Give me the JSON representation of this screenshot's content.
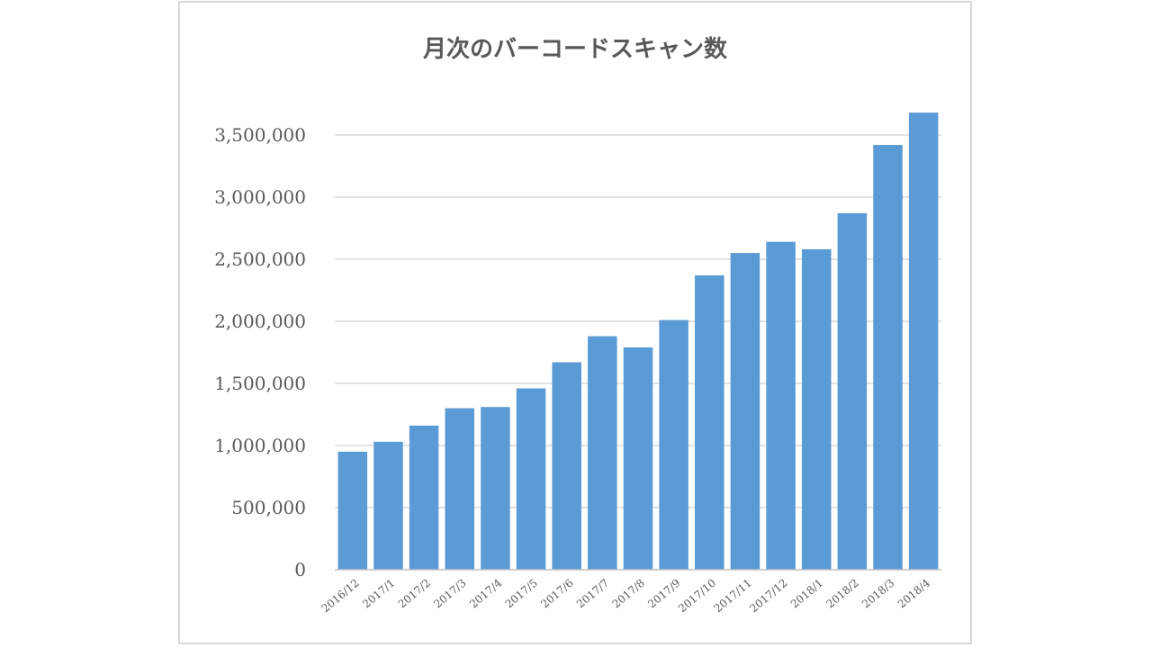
{
  "chart_data": {
    "type": "bar",
    "title": "月次のバーコードスキャン数",
    "xlabel": "",
    "ylabel": "",
    "categories": [
      "2016/12",
      "2017/1",
      "2017/2",
      "2017/3",
      "2017/4",
      "2017/5",
      "2017/6",
      "2017/7",
      "2017/8",
      "2017/9",
      "2017/10",
      "2017/11",
      "2017/12",
      "2018/1",
      "2018/2",
      "2018/3",
      "2018/4"
    ],
    "values": [
      950000,
      1030000,
      1160000,
      1300000,
      1310000,
      1460000,
      1670000,
      1880000,
      1790000,
      2010000,
      2370000,
      2550000,
      2640000,
      2580000,
      2870000,
      3420000,
      3680000
    ],
    "ylim": [
      0,
      3500000
    ],
    "yticks": [
      0,
      500000,
      1000000,
      1500000,
      2000000,
      2500000,
      3000000,
      3500000
    ],
    "ytick_labels": [
      "0",
      "500,000",
      "1,000,000",
      "1,500,000",
      "2,000,000",
      "2,500,000",
      "3,000,000",
      "3,500,000"
    ],
    "grid": true,
    "legend": "none",
    "bar_color": "#5b9bd5"
  }
}
